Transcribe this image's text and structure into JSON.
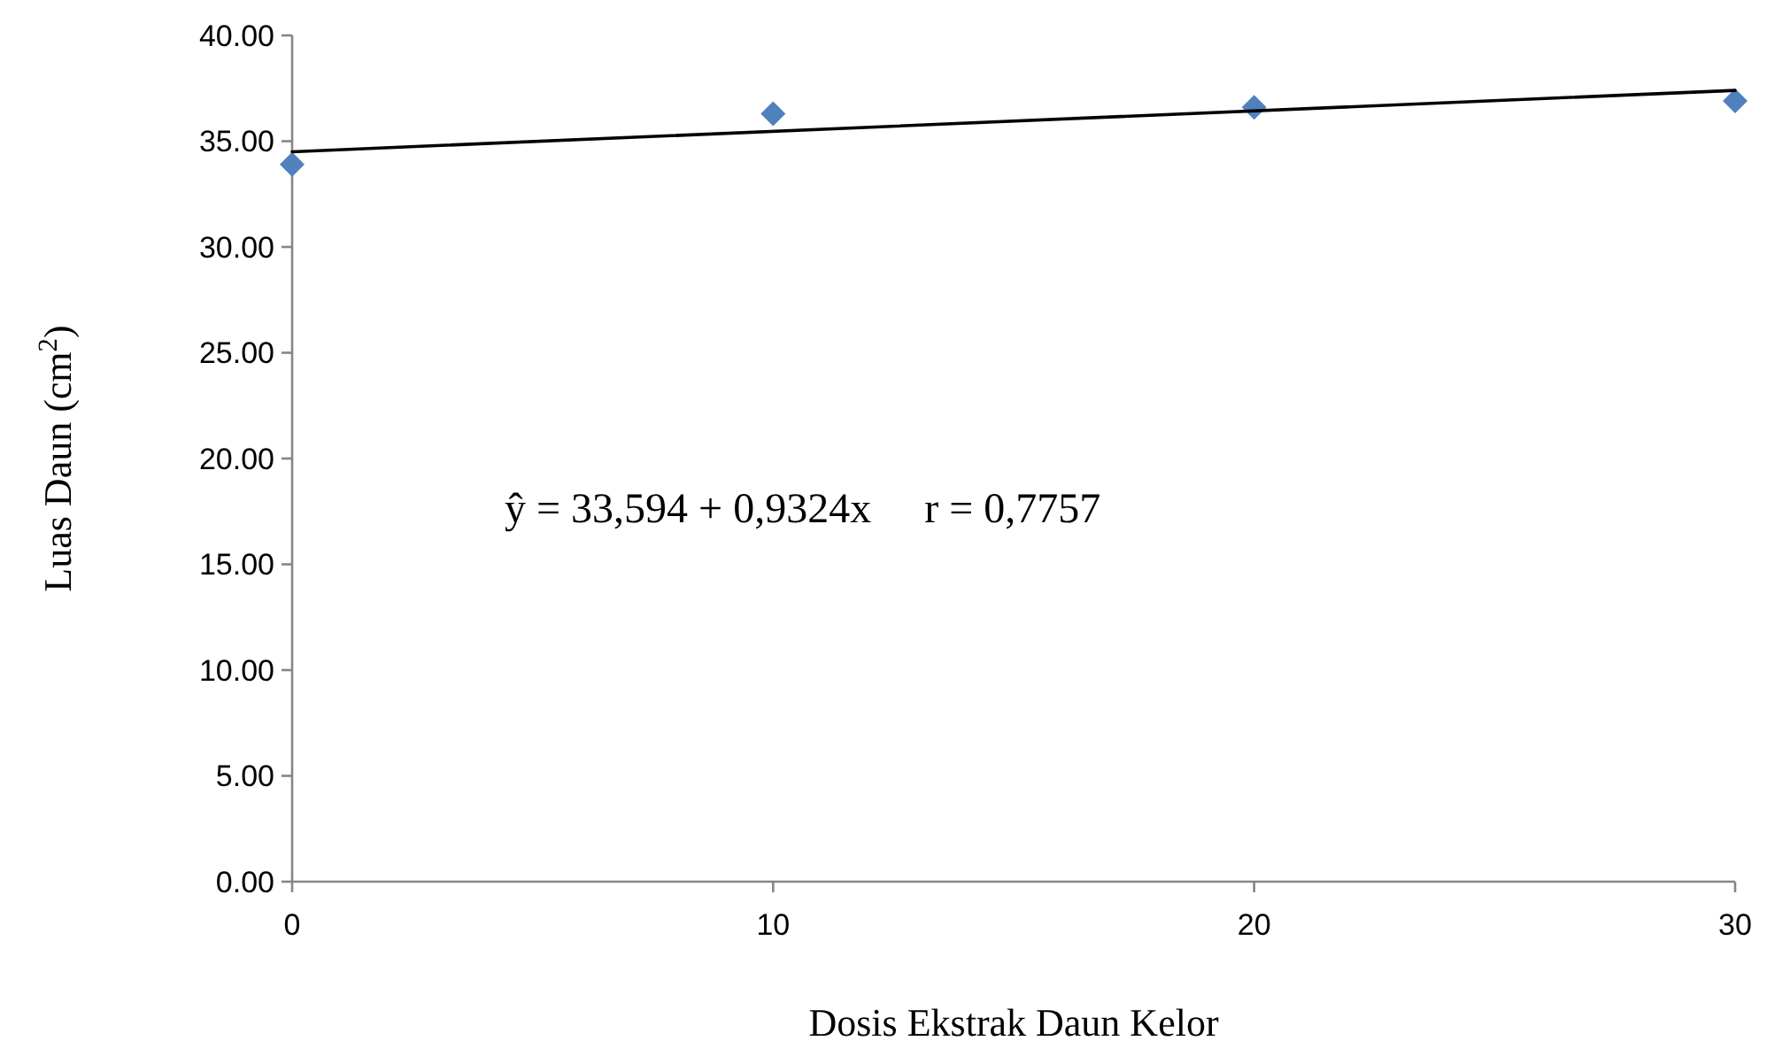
{
  "chart_data": {
    "type": "scatter",
    "xlabel": "Dosis Ekstrak Daun Kelor",
    "ylabel": "Luas Daun (cm$^{2}$)",
    "x": [
      0,
      10,
      20,
      30
    ],
    "xlim": [
      0,
      30
    ],
    "xticks": [
      0,
      10,
      20,
      30
    ],
    "ylim": [
      0,
      40
    ],
    "yticks": [
      {
        "value": 0,
        "label": "0.00"
      },
      {
        "value": 5,
        "label": "5.00"
      },
      {
        "value": 10,
        "label": "10.00"
      },
      {
        "value": 15,
        "label": "15.00"
      },
      {
        "value": 20,
        "label": "20.00"
      },
      {
        "value": 25,
        "label": "25.00"
      },
      {
        "value": 30,
        "label": "30.00"
      },
      {
        "value": 35,
        "label": "35.00"
      },
      {
        "value": 40,
        "label": "40.00"
      }
    ],
    "series": [
      {
        "color": "#4f81bd",
        "marker": "diamond",
        "values": [
          33.9,
          36.3,
          36.6,
          36.9
        ]
      },
      {
        "type": "line",
        "color": "#000000",
        "marker": "none",
        "line_style": "solid",
        "x": [
          0,
          30
        ],
        "values": [
          34.5,
          37.4
        ]
      }
    ],
    "annotations": [
      "ŷ = 33,594 + 0,9324x     r = 0,7757"
    ],
    "grid": false
  }
}
